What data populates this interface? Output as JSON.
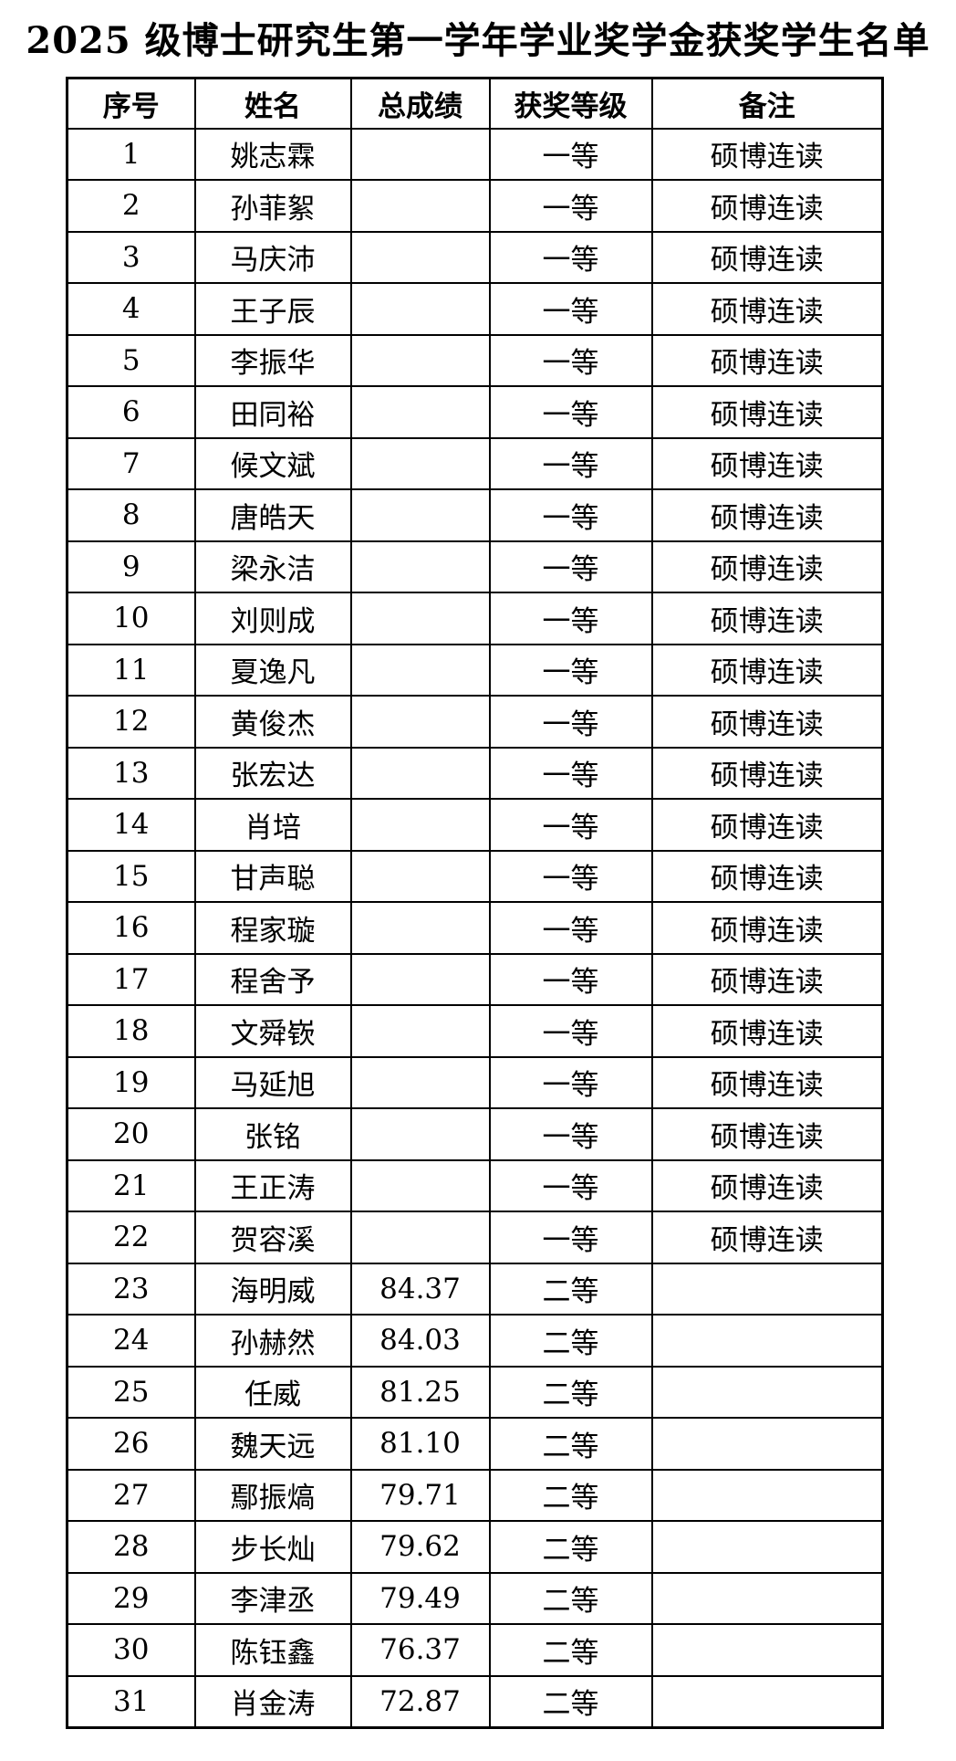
{
  "doc": {
    "title": "2025 级博士研究生第一学年学业奖学金获奖学生名单"
  },
  "colors": {
    "background": "#ffffff",
    "text": "#000000",
    "border": "#000000"
  },
  "table": {
    "columns": [
      "序号",
      "姓名",
      "总成绩",
      "获奖等级",
      "备注"
    ],
    "rows": [
      {
        "no": "1",
        "name": "姚志霖",
        "score": "",
        "level": "一等",
        "note": "硕博连读"
      },
      {
        "no": "2",
        "name": "孙菲絮",
        "score": "",
        "level": "一等",
        "note": "硕博连读"
      },
      {
        "no": "3",
        "name": "马庆沛",
        "score": "",
        "level": "一等",
        "note": "硕博连读"
      },
      {
        "no": "4",
        "name": "王子辰",
        "score": "",
        "level": "一等",
        "note": "硕博连读"
      },
      {
        "no": "5",
        "name": "李振华",
        "score": "",
        "level": "一等",
        "note": "硕博连读"
      },
      {
        "no": "6",
        "name": "田同裕",
        "score": "",
        "level": "一等",
        "note": "硕博连读"
      },
      {
        "no": "7",
        "name": "候文斌",
        "score": "",
        "level": "一等",
        "note": "硕博连读"
      },
      {
        "no": "8",
        "name": "唐皓天",
        "score": "",
        "level": "一等",
        "note": "硕博连读"
      },
      {
        "no": "9",
        "name": "梁永洁",
        "score": "",
        "level": "一等",
        "note": "硕博连读"
      },
      {
        "no": "10",
        "name": "刘则成",
        "score": "",
        "level": "一等",
        "note": "硕博连读"
      },
      {
        "no": "11",
        "name": "夏逸凡",
        "score": "",
        "level": "一等",
        "note": "硕博连读"
      },
      {
        "no": "12",
        "name": "黄俊杰",
        "score": "",
        "level": "一等",
        "note": "硕博连读"
      },
      {
        "no": "13",
        "name": "张宏达",
        "score": "",
        "level": "一等",
        "note": "硕博连读"
      },
      {
        "no": "14",
        "name": "肖培",
        "score": "",
        "level": "一等",
        "note": "硕博连读"
      },
      {
        "no": "15",
        "name": "甘声聪",
        "score": "",
        "level": "一等",
        "note": "硕博连读"
      },
      {
        "no": "16",
        "name": "程家璇",
        "score": "",
        "level": "一等",
        "note": "硕博连读"
      },
      {
        "no": "17",
        "name": "程舍予",
        "score": "",
        "level": "一等",
        "note": "硕博连读"
      },
      {
        "no": "18",
        "name": "文舜嵚",
        "score": "",
        "level": "一等",
        "note": "硕博连读"
      },
      {
        "no": "19",
        "name": "马延旭",
        "score": "",
        "level": "一等",
        "note": "硕博连读"
      },
      {
        "no": "20",
        "name": "张铭",
        "score": "",
        "level": "一等",
        "note": "硕博连读"
      },
      {
        "no": "21",
        "name": "王正涛",
        "score": "",
        "level": "一等",
        "note": "硕博连读"
      },
      {
        "no": "22",
        "name": "贺容溪",
        "score": "",
        "level": "一等",
        "note": "硕博连读"
      },
      {
        "no": "23",
        "name": "海明威",
        "score": "84.37",
        "level": "二等",
        "note": ""
      },
      {
        "no": "24",
        "name": "孙赫然",
        "score": "84.03",
        "level": "二等",
        "note": ""
      },
      {
        "no": "25",
        "name": "任威",
        "score": "81.25",
        "level": "二等",
        "note": ""
      },
      {
        "no": "26",
        "name": "魏天远",
        "score": "81.10",
        "level": "二等",
        "note": ""
      },
      {
        "no": "27",
        "name": "鄢振熇",
        "score": "79.71",
        "level": "二等",
        "note": ""
      },
      {
        "no": "28",
        "name": "步长灿",
        "score": "79.62",
        "level": "二等",
        "note": ""
      },
      {
        "no": "29",
        "name": "李津丞",
        "score": "79.49",
        "level": "二等",
        "note": ""
      },
      {
        "no": "30",
        "name": "陈钰鑫",
        "score": "76.37",
        "level": "二等",
        "note": ""
      },
      {
        "no": "31",
        "name": "肖金涛",
        "score": "72.87",
        "level": "二等",
        "note": ""
      }
    ]
  }
}
